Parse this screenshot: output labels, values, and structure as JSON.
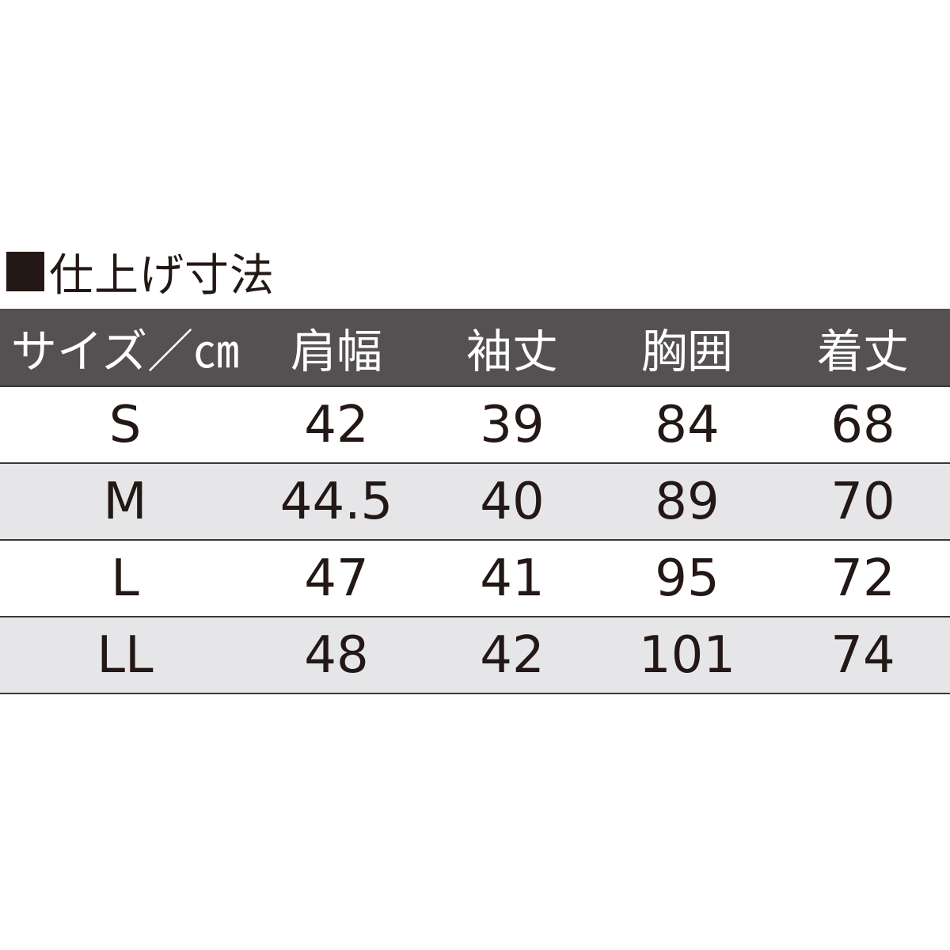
{
  "title": "仕上げ寸法",
  "table": {
    "headers": [
      "サイズ／㎝",
      "肩幅",
      "袖丈",
      "胸囲",
      "着丈"
    ],
    "rows": [
      [
        "S",
        "42",
        "39",
        "84",
        "68"
      ],
      [
        "M",
        "44.5",
        "40",
        "89",
        "70"
      ],
      [
        "L",
        "47",
        "41",
        "95",
        "72"
      ],
      [
        "LL",
        "48",
        "42",
        "101",
        "74"
      ]
    ]
  },
  "colors": {
    "header_bg": "#555152",
    "alt_row_bg": "#e6e6e8",
    "text": "#231815"
  }
}
